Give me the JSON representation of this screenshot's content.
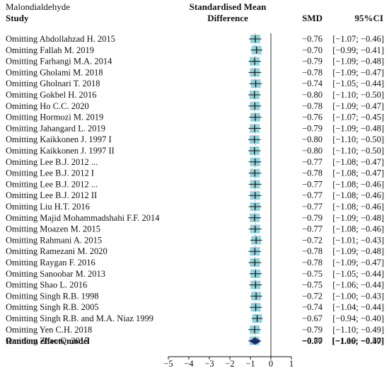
{
  "chart_data": {
    "type": "forest",
    "subtitle": "Malondialdehyde",
    "columns": {
      "study": "Study",
      "effect": "Standardised Mean Difference",
      "smd": "SMD",
      "ci": "95%CI"
    },
    "studies": [
      {
        "label": "Omitting Abdollahzad H. 2015",
        "smd": -0.76,
        "lo": -1.07,
        "hi": -0.46,
        "smd_text": "−0.76",
        "ci_text": "[−1.07; −0.46]"
      },
      {
        "label": "Omitting Fallah M. 2019",
        "smd": -0.7,
        "lo": -0.99,
        "hi": -0.41,
        "smd_text": "−0.70",
        "ci_text": "[−0.99; −0.41]"
      },
      {
        "label": "Omitting Farhangi M.A. 2014",
        "smd": -0.79,
        "lo": -1.09,
        "hi": -0.48,
        "smd_text": "−0.79",
        "ci_text": "[−1.09; −0.48]"
      },
      {
        "label": "Omitting Gholami M. 2018",
        "smd": -0.78,
        "lo": -1.09,
        "hi": -0.47,
        "smd_text": "−0.78",
        "ci_text": "[−1.09; −0.47]"
      },
      {
        "label": "Omitting Gholnari T. 2018",
        "smd": -0.74,
        "lo": -1.05,
        "hi": -0.44,
        "smd_text": "−0.74",
        "ci_text": "[−1.05; −0.44]"
      },
      {
        "label": "Omitting Gokbel H. 2016",
        "smd": -0.8,
        "lo": -1.1,
        "hi": -0.5,
        "smd_text": "−0.80",
        "ci_text": "[−1.10; −0.50]"
      },
      {
        "label": "Omitting Ho C.C. 2020",
        "smd": -0.78,
        "lo": -1.09,
        "hi": -0.47,
        "smd_text": "−0.78",
        "ci_text": "[−1.09; −0.47]"
      },
      {
        "label": "Omitting Hormozi M. 2019",
        "smd": -0.76,
        "lo": -1.07,
        "hi": -0.45,
        "smd_text": "−0.76",
        "ci_text": "[−1.07; −0.45]"
      },
      {
        "label": "Omitting Jahangard L. 2019",
        "smd": -0.79,
        "lo": -1.09,
        "hi": -0.48,
        "smd_text": "−0.79",
        "ci_text": "[−1.09; −0.48]"
      },
      {
        "label": "Omitting Kaikkonen J. 1997 I",
        "smd": -0.8,
        "lo": -1.1,
        "hi": -0.5,
        "smd_text": "−0.80",
        "ci_text": "[−1.10; −0.50]"
      },
      {
        "label": "Omitting Kaikkonen J. 1997 II",
        "smd": -0.8,
        "lo": -1.1,
        "hi": -0.5,
        "smd_text": "−0.80",
        "ci_text": "[−1.10; −0.50]"
      },
      {
        "label": "Omitting Lee B.J. 2012 ...",
        "smd": -0.77,
        "lo": -1.08,
        "hi": -0.47,
        "smd_text": "−0.77",
        "ci_text": "[−1.08; −0.47]"
      },
      {
        "label": "Omitting Lee B.J. 2012 I",
        "smd": -0.78,
        "lo": -1.08,
        "hi": -0.47,
        "smd_text": "−0.78",
        "ci_text": "[−1.08; −0.47]"
      },
      {
        "label": "Omitting Lee B.J. 2012 ...",
        "smd": -0.77,
        "lo": -1.08,
        "hi": -0.46,
        "smd_text": "−0.77",
        "ci_text": "[−1.08; −0.46]"
      },
      {
        "label": "Omitting Lee B.J. 2012 II",
        "smd": -0.77,
        "lo": -1.08,
        "hi": -0.46,
        "smd_text": "−0.77",
        "ci_text": "[−1.08; −0.46]"
      },
      {
        "label": "Omitting Liu H.T. 2016",
        "smd": -0.77,
        "lo": -1.08,
        "hi": -0.46,
        "smd_text": "−0.77",
        "ci_text": "[−1.08; −0.46]"
      },
      {
        "label": "Omitting Majid Mohammadshahi F.F. 2014",
        "smd": -0.79,
        "lo": -1.09,
        "hi": -0.48,
        "smd_text": "−0.79",
        "ci_text": "[−1.09; −0.48]"
      },
      {
        "label": "Omitting Moazen M. 2015",
        "smd": -0.77,
        "lo": -1.08,
        "hi": -0.46,
        "smd_text": "−0.77",
        "ci_text": "[−1.08; −0.46]"
      },
      {
        "label": "Omitting Rahmani A. 2015",
        "smd": -0.72,
        "lo": -1.01,
        "hi": -0.43,
        "smd_text": "−0.72",
        "ci_text": "[−1.01; −0.43]"
      },
      {
        "label": "Omitting Ramezani M. 2020",
        "smd": -0.78,
        "lo": -1.09,
        "hi": -0.48,
        "smd_text": "−0.78",
        "ci_text": "[−1.09; −0.48]"
      },
      {
        "label": "Omitting Raygan F. 2016",
        "smd": -0.78,
        "lo": -1.09,
        "hi": -0.47,
        "smd_text": "−0.78",
        "ci_text": "[−1.09; −0.47]"
      },
      {
        "label": "Omitting Sanoobar M. 2013",
        "smd": -0.75,
        "lo": -1.05,
        "hi": -0.44,
        "smd_text": "−0.75",
        "ci_text": "[−1.05; −0.44]"
      },
      {
        "label": "Omitting Shao L. 2016",
        "smd": -0.75,
        "lo": -1.06,
        "hi": -0.44,
        "smd_text": "−0.75",
        "ci_text": "[−1.06; −0.44]"
      },
      {
        "label": "Omitting Singh R.B. 1998",
        "smd": -0.72,
        "lo": -1.0,
        "hi": -0.43,
        "smd_text": "−0.72",
        "ci_text": "[−1.00; −0.43]"
      },
      {
        "label": "Omitting Singh R.B. 2005",
        "smd": -0.74,
        "lo": -1.04,
        "hi": -0.44,
        "smd_text": "−0.74",
        "ci_text": "[−1.04; −0.44]"
      },
      {
        "label": "Omitting Singh R.B. and M.A. Niaz 1999",
        "smd": -0.67,
        "lo": -0.94,
        "hi": -0.4,
        "smd_text": "−0.67",
        "ci_text": "[−0.94; −0.40]"
      },
      {
        "label": "Omitting Yen C.H. 2018",
        "smd": -0.79,
        "lo": -1.1,
        "hi": -0.49,
        "smd_text": "−0.79",
        "ci_text": "[−1.10; −0.49]"
      },
      {
        "label": "Omitting Zhao Q. 2015",
        "smd": -0.8,
        "lo": -1.1,
        "hi": -0.5,
        "smd_text": "−0.80",
        "ci_text": "[−1.10; −0.50]"
      }
    ],
    "pooled": {
      "label": "Random effects model",
      "smd": -0.77,
      "lo": -1.06,
      "hi": -0.47,
      "smd_text": "−0.77",
      "ci_text": "[−1.06; −0.47]"
    },
    "xlim": [
      -5,
      1
    ],
    "xticks": [
      -5,
      -4,
      -3,
      -2,
      -1,
      0,
      1
    ],
    "xtick_labels": [
      "−5",
      "−4",
      "−3",
      "−2",
      "−1",
      "0",
      "1"
    ],
    "null_line": 0,
    "box_color": "#8fd2dc",
    "diamond_color": "#1a2a66"
  }
}
